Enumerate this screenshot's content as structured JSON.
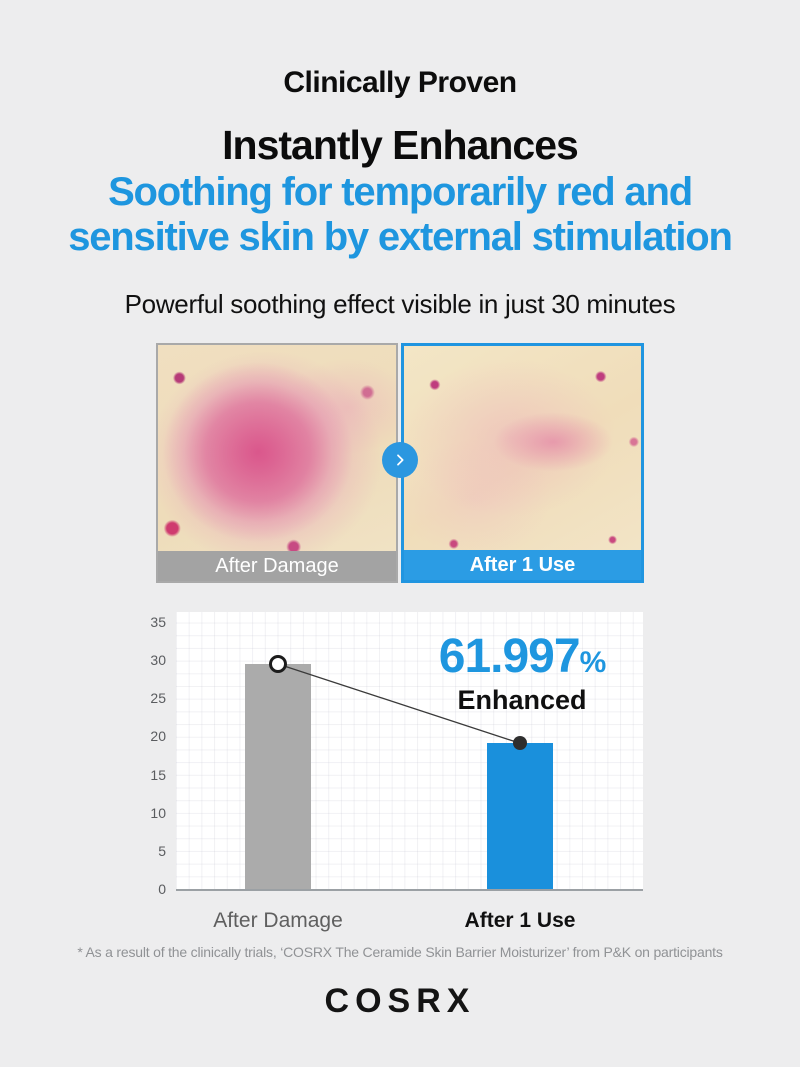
{
  "page": {
    "background": "#ededee",
    "accent_blue": "#1e96df"
  },
  "header": {
    "eyebrow": "Clinically Proven",
    "title": "Instantly Enhances",
    "subtitle_line1": "Soothing for temporarily red and",
    "subtitle_line2": "sensitive skin by external stimulation",
    "tagline": "Powerful soothing effect visible in just 30 minutes"
  },
  "comparison": {
    "before_label": "After Damage",
    "after_label": "After 1 Use",
    "before_band_color": "#a3a3a3",
    "after_band_color": "#2b9ce4",
    "arrow_icon": "chevron-right-icon"
  },
  "chart_data": {
    "type": "bar",
    "title": "",
    "categories": [
      "After Damage",
      "After 1 Use"
    ],
    "values": [
      29.5,
      19.1
    ],
    "bar_colors": [
      "#ababab",
      "#1a90dc"
    ],
    "ylim": [
      0,
      35
    ],
    "yticks": [
      0,
      5,
      10,
      15,
      20,
      25,
      30,
      35
    ],
    "grid": true,
    "legend": false,
    "connector_line": true,
    "markers": [
      "open-circle",
      "filled-circle"
    ],
    "annotation": {
      "value": "61.997",
      "unit": "%",
      "label": "Enhanced"
    }
  },
  "footnote": "* As a result of the clinically trials, ‘COSRX The Ceramide Skin Barrier Moisturizer’ from P&K on participants",
  "logo": {
    "text": "COSRX"
  }
}
